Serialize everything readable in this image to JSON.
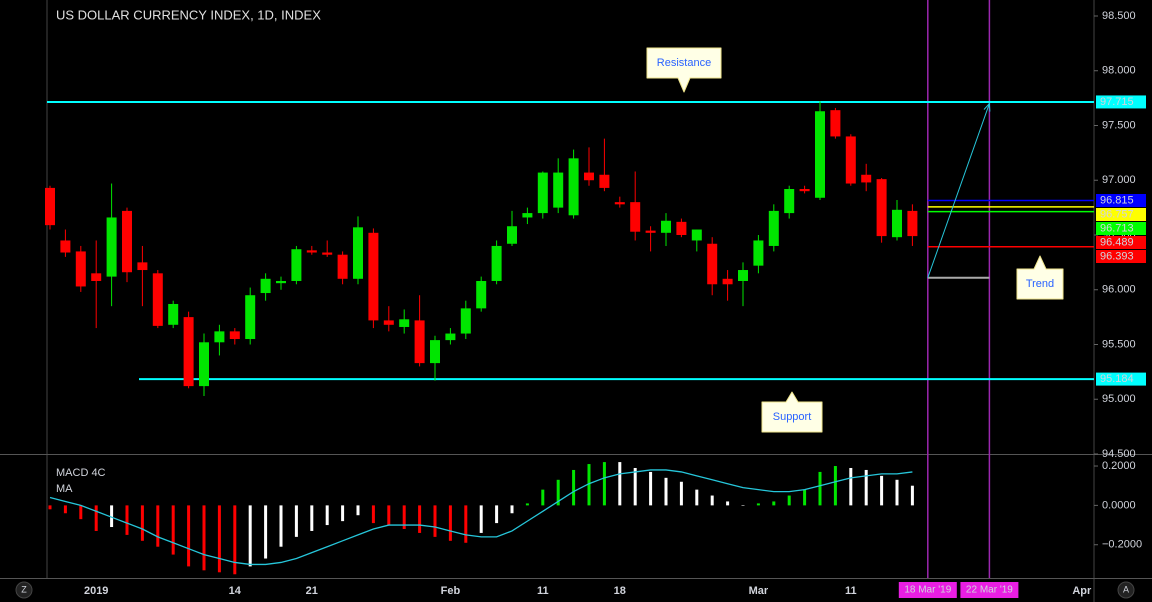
{
  "chart_data": {
    "type": "candlestick",
    "title": "US DOLLAR CURRENCY INDEX, 1D, INDEX",
    "categories": [
      null,
      null,
      null,
      "2019",
      null,
      null,
      null,
      null,
      null,
      null,
      null,
      null,
      "14",
      null,
      null,
      null,
      null,
      "21",
      null,
      null,
      null,
      null,
      null,
      null,
      null,
      null,
      "Feb",
      null,
      null,
      null,
      null,
      null,
      "11",
      null,
      null,
      null,
      null,
      "18",
      null,
      null,
      null,
      null,
      null,
      null,
      null,
      null,
      "Mar",
      null,
      null,
      null,
      null,
      null,
      "11",
      null,
      null,
      null,
      null,
      "18 Mar '19",
      null,
      null,
      null,
      "22 Mar '19",
      null,
      null,
      null,
      null,
      null,
      "Apr"
    ],
    "open": [
      96.93,
      96.45,
      96.35,
      96.15,
      96.12,
      96.72,
      96.25,
      96.15,
      95.68,
      95.75,
      95.12,
      95.52,
      95.62,
      95.55,
      95.97,
      96.06,
      96.08,
      96.36,
      96.34,
      96.32,
      96.1,
      96.52,
      95.72,
      95.66,
      95.72,
      95.33,
      95.54,
      95.6,
      95.83,
      96.08,
      96.42,
      96.66,
      96.7,
      96.75,
      96.68,
      97.07,
      97.05,
      96.8,
      96.8,
      96.54,
      96.52,
      96.62,
      96.45,
      96.42,
      96.1,
      96.08,
      96.22,
      96.4,
      96.7,
      96.92,
      96.84,
      97.64,
      97.4,
      97.05,
      97.01,
      96.48,
      96.72,
      null,
      null,
      null,
      null,
      null,
      null,
      null,
      null,
      null,
      null,
      null
    ],
    "high": [
      96.95,
      96.55,
      96.4,
      96.45,
      96.97,
      96.75,
      96.4,
      96.18,
      95.9,
      95.8,
      95.6,
      95.68,
      95.65,
      96.02,
      96.15,
      96.12,
      96.4,
      96.4,
      96.45,
      96.35,
      96.67,
      96.56,
      95.85,
      95.82,
      95.95,
      95.58,
      95.65,
      95.9,
      96.12,
      96.45,
      96.72,
      96.75,
      97.08,
      97.2,
      97.28,
      97.3,
      97.38,
      96.85,
      97.08,
      96.58,
      96.7,
      96.65,
      96.55,
      96.48,
      96.18,
      96.25,
      96.5,
      96.78,
      96.95,
      96.95,
      97.72,
      97.66,
      97.42,
      97.15,
      97.02,
      96.82,
      96.78,
      null,
      null,
      null,
      null,
      null,
      null,
      null,
      null,
      null,
      null,
      null
    ],
    "low": [
      96.55,
      96.3,
      95.98,
      95.65,
      95.85,
      96.07,
      95.85,
      95.65,
      95.65,
      95.1,
      95.03,
      95.4,
      95.5,
      95.5,
      95.9,
      96.0,
      96.05,
      96.32,
      96.3,
      96.05,
      96.05,
      95.65,
      95.62,
      95.6,
      95.3,
      95.17,
      95.5,
      95.55,
      95.8,
      96.05,
      96.4,
      96.6,
      96.65,
      96.7,
      96.65,
      96.95,
      96.9,
      96.75,
      96.45,
      96.35,
      96.4,
      96.48,
      96.35,
      95.95,
      95.9,
      95.85,
      96.15,
      96.35,
      96.65,
      96.88,
      96.82,
      97.38,
      96.95,
      96.9,
      96.43,
      96.45,
      96.4,
      null,
      null,
      null,
      null,
      null,
      null,
      null,
      null,
      null,
      null,
      null
    ],
    "close": [
      96.59,
      96.34,
      96.03,
      96.08,
      96.66,
      96.16,
      96.18,
      95.67,
      95.87,
      95.12,
      95.52,
      95.62,
      95.55,
      95.95,
      96.1,
      96.08,
      96.37,
      96.34,
      96.32,
      96.1,
      96.57,
      95.72,
      95.68,
      95.73,
      95.33,
      95.54,
      95.6,
      95.83,
      96.08,
      96.4,
      96.58,
      96.7,
      97.07,
      97.07,
      97.2,
      97.0,
      96.93,
      96.78,
      96.53,
      96.52,
      96.63,
      96.5,
      96.55,
      96.05,
      96.05,
      96.18,
      96.45,
      96.72,
      96.92,
      96.9,
      97.63,
      97.4,
      96.97,
      96.98,
      96.49,
      96.73,
      96.49,
      null,
      null,
      null,
      null,
      null,
      null,
      null,
      null,
      null,
      null,
      null
    ],
    "up_color": "#00e600",
    "down_color": "#ff0000",
    "ylim": [
      94.5,
      98.646
    ],
    "yticks": [
      {
        "value": 94.5,
        "label": "94.500"
      },
      {
        "value": 95,
        "label": "95.000"
      },
      {
        "value": 95.5,
        "label": "95.500"
      },
      {
        "value": 96,
        "label": "96.000"
      },
      {
        "value": 96.5,
        "label": "96.500"
      },
      {
        "value": 97,
        "label": "97.000"
      },
      {
        "value": 97.5,
        "label": "97.500"
      },
      {
        "value": 98,
        "label": "98.000"
      },
      {
        "value": 98.5,
        "label": "98.500"
      }
    ],
    "levels": [
      {
        "value": 97.715,
        "color": "#00ffff",
        "text_color": "#000000",
        "line": "full"
      },
      {
        "value": 96.815,
        "color": "#0000ff",
        "text_color": "#ffffff",
        "line": "projection"
      },
      {
        "value": 96.757,
        "color": "#ffff00",
        "text_color": "#000000",
        "line": "projection"
      },
      {
        "value": 96.713,
        "color": "#00ff00",
        "text_color": "#000000",
        "line": "projection"
      },
      {
        "value": 96.489,
        "color": "#ff0000",
        "text_color": "#ffffff",
        "line": "none"
      },
      {
        "value": 96.393,
        "color": "#ff0000",
        "text_color": "#ffffff",
        "line": "projection"
      },
      {
        "value": 95.184,
        "color": "#00ffff",
        "text_color": "#000000",
        "line": "support"
      }
    ],
    "vertical_lines": [
      57,
      61
    ],
    "vertical_line_color": "#9c27b0",
    "trend": {
      "start_index": 57,
      "end_index": 61,
      "start_value": 96.11,
      "end_value": 97.7,
      "color": "#26c6da",
      "base_color": "#aaaaaa"
    },
    "annotations": {
      "resistance": "Resistance",
      "trend": "Trend",
      "support": "Support"
    },
    "macd": {
      "label": "MACD 4C",
      "signal_label": "MA",
      "ylim": [
        -0.369,
        0.256
      ],
      "yticks": [
        {
          "value": 0.2,
          "label": "0.2000"
        },
        {
          "value": 0,
          "label": "0.0000"
        },
        {
          "value": -0.2,
          "label": "−0.2000"
        }
      ],
      "values": [
        -0.02,
        -0.04,
        -0.07,
        -0.13,
        -0.11,
        -0.15,
        -0.18,
        -0.21,
        -0.25,
        -0.31,
        -0.33,
        -0.34,
        -0.35,
        -0.31,
        -0.27,
        -0.21,
        -0.16,
        -0.13,
        -0.1,
        -0.08,
        -0.05,
        -0.09,
        -0.1,
        -0.12,
        -0.14,
        -0.16,
        -0.18,
        -0.19,
        -0.14,
        -0.09,
        -0.04,
        0.01,
        0.08,
        0.13,
        0.18,
        0.21,
        0.22,
        0.22,
        0.19,
        0.17,
        0.14,
        0.12,
        0.08,
        0.05,
        0.02,
        0.0,
        0.01,
        0.02,
        0.05,
        0.08,
        0.17,
        0.2,
        0.19,
        0.18,
        0.15,
        0.13,
        0.1,
        null,
        null,
        null,
        null,
        null,
        null,
        null,
        null,
        null,
        null,
        null
      ],
      "colors": [
        "#ff0000",
        "#ff0000",
        "#ff0000",
        "#ff0000",
        "#ffffff",
        "#ff0000",
        "#ff0000",
        "#ff0000",
        "#ff0000",
        "#ff0000",
        "#ff0000",
        "#ff0000",
        "#ff0000",
        "#ffffff",
        "#ffffff",
        "#ffffff",
        "#ffffff",
        "#ffffff",
        "#ffffff",
        "#ffffff",
        "#ffffff",
        "#ff0000",
        "#ff0000",
        "#ff0000",
        "#ff0000",
        "#ff0000",
        "#ff0000",
        "#ff0000",
        "#ffffff",
        "#ffffff",
        "#ffffff",
        "#00e600",
        "#00e600",
        "#00e600",
        "#00e600",
        "#00e600",
        "#00e600",
        "#ffffff",
        "#ffffff",
        "#ffffff",
        "#ffffff",
        "#ffffff",
        "#ffffff",
        "#ffffff",
        "#ffffff",
        "#ffffff",
        "#00e600",
        "#00e600",
        "#00e600",
        "#00e600",
        "#00e600",
        "#00e600",
        "#ffffff",
        "#ffffff",
        "#ffffff",
        "#ffffff",
        "#ffffff",
        null,
        null,
        null,
        null,
        null,
        null,
        null,
        null,
        null,
        null,
        null
      ],
      "signal": [
        0.04,
        0.02,
        0.0,
        -0.03,
        -0.06,
        -0.09,
        -0.12,
        -0.16,
        -0.19,
        -0.22,
        -0.25,
        -0.27,
        -0.29,
        -0.3,
        -0.3,
        -0.29,
        -0.27,
        -0.24,
        -0.21,
        -0.18,
        -0.15,
        -0.12,
        -0.1,
        -0.1,
        -0.1,
        -0.11,
        -0.13,
        -0.15,
        -0.16,
        -0.16,
        -0.13,
        -0.08,
        -0.03,
        0.02,
        0.07,
        0.11,
        0.14,
        0.16,
        0.17,
        0.18,
        0.18,
        0.17,
        0.15,
        0.13,
        0.11,
        0.09,
        0.08,
        0.07,
        0.07,
        0.08,
        0.1,
        0.12,
        0.14,
        0.15,
        0.16,
        0.16,
        0.17,
        null,
        null,
        null,
        null,
        null,
        null,
        null,
        null,
        null,
        null,
        null
      ],
      "signal_color": "#26c6da"
    },
    "ui": {
      "left_button": "Z",
      "right_button": "A"
    }
  }
}
